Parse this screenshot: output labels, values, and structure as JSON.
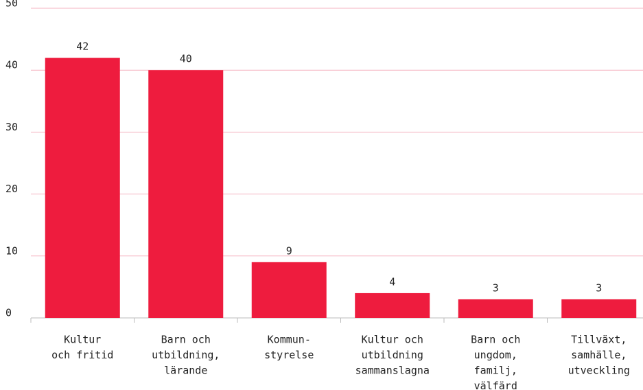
{
  "chart_data": {
    "type": "bar",
    "categories": [
      [
        "Kultur",
        "och fritid"
      ],
      [
        "Barn och",
        "utbildning,",
        "lärande"
      ],
      [
        "Kommun-",
        "styrelse"
      ],
      [
        "Kultur och",
        "utbildning",
        "sammanslagna"
      ],
      [
        "Barn och",
        "ungdom,",
        "familj,",
        "välfärd"
      ],
      [
        "Tillväxt,",
        "samhälle,",
        "utveckling"
      ]
    ],
    "values": [
      42,
      40,
      9,
      4,
      3,
      3
    ],
    "color": "#ee1c3e",
    "ylim": [
      0,
      50
    ],
    "yticks": [
      0,
      10,
      20,
      30,
      40,
      50
    ],
    "grid": true
  }
}
